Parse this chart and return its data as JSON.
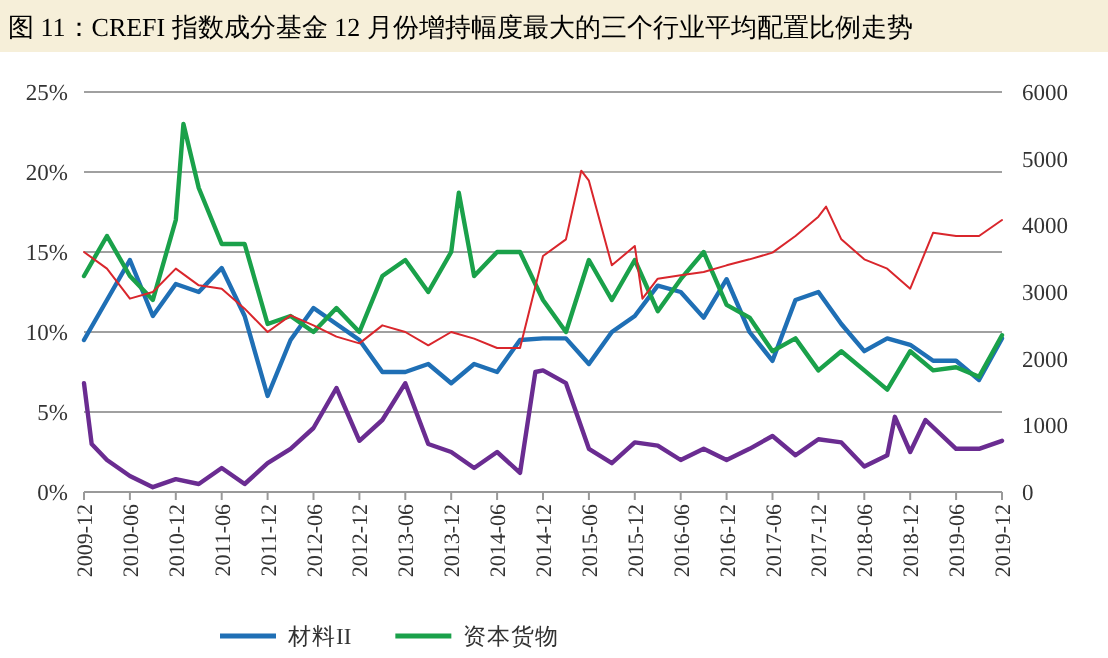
{
  "chart_data": {
    "type": "line",
    "title": "图 11：CREFI 指数成分基金 12 月份增持幅度最大的三个行业平均配置比例走势",
    "x": [
      "2009-12",
      "2010-03",
      "2010-06",
      "2010-09",
      "2010-12",
      "2011-03",
      "2011-06",
      "2011-09",
      "2011-12",
      "2012-03",
      "2012-06",
      "2012-09",
      "2012-12",
      "2013-03",
      "2013-06",
      "2013-09",
      "2013-12",
      "2014-03",
      "2014-06",
      "2014-09",
      "2014-12",
      "2015-03",
      "2015-06",
      "2015-09",
      "2015-12",
      "2016-03",
      "2016-06",
      "2016-09",
      "2016-12",
      "2017-03",
      "2017-06",
      "2017-09",
      "2017-12",
      "2018-03",
      "2018-06",
      "2018-09",
      "2018-12",
      "2019-03",
      "2019-06",
      "2019-09",
      "2019-12"
    ],
    "series": [
      {
        "name": "材料II",
        "color": "#1f6fb5",
        "values": [
          9.5,
          12,
          14.5,
          11,
          13,
          12.5,
          14,
          11,
          6,
          9.5,
          11.5,
          10.5,
          9.5,
          7.5,
          7.5,
          8,
          6.8,
          8,
          7.5,
          9.5,
          9.6,
          9.6,
          8,
          10,
          11,
          12.9,
          12.5,
          10.9,
          13.3,
          10,
          8.2,
          12,
          12.5,
          10.5,
          8.8,
          9.6,
          9.2,
          8.2,
          8.2,
          7,
          9.6
        ]
      },
      {
        "name": "资本货物",
        "color": "#1aa14a",
        "x": [
          "2009-12",
          "2010-03",
          "2010-06",
          "2010-09",
          "2010-12",
          "2011-01",
          "2011-03",
          "2011-06",
          "2011-09",
          "2011-12",
          "2012-03",
          "2012-06",
          "2012-09",
          "2012-12",
          "2013-03",
          "2013-06",
          "2013-09",
          "2013-12",
          "2014-01",
          "2014-03",
          "2014-06",
          "2014-09",
          "2014-12",
          "2015-03",
          "2015-06",
          "2015-09",
          "2015-12",
          "2016-03",
          "2016-06",
          "2016-09",
          "2016-12",
          "2017-03",
          "2017-06",
          "2017-09",
          "2017-12",
          "2018-03",
          "2018-06",
          "2018-09",
          "2018-12",
          "2019-03",
          "2019-06",
          "2019-09",
          "2019-12"
        ],
        "values": [
          13.5,
          16,
          13.5,
          12,
          17,
          23,
          19,
          15.5,
          15.5,
          10.5,
          11,
          10,
          11.5,
          10,
          13.5,
          14.5,
          12.5,
          15,
          18.7,
          13.5,
          15,
          15,
          12,
          10,
          14.5,
          12,
          14.5,
          11.3,
          13.3,
          15,
          11.7,
          10.9,
          8.8,
          9.6,
          7.6,
          8.8,
          7.6,
          6.4,
          8.8,
          7.6,
          7.8,
          7.2,
          9.8
        ]
      },
      {
        "color": "#6a2c91",
        "x": [
          "2009-12",
          "2010-01",
          "2010-03",
          "2010-06",
          "2010-09",
          "2010-12",
          "2011-03",
          "2011-06",
          "2011-09",
          "2011-12",
          "2012-03",
          "2012-06",
          "2012-09",
          "2012-12",
          "2013-03",
          "2013-06",
          "2013-09",
          "2013-12",
          "2014-03",
          "2014-06",
          "2014-09",
          "2014-11",
          "2014-12",
          "2015-03",
          "2015-06",
          "2015-09",
          "2015-12",
          "2016-03",
          "2016-06",
          "2016-09",
          "2016-12",
          "2017-03",
          "2017-06",
          "2017-09",
          "2017-12",
          "2018-03",
          "2018-06",
          "2018-09",
          "2018-10",
          "2018-12",
          "2019-02",
          "2019-06",
          "2019-09",
          "2019-12"
        ],
        "values": [
          6.8,
          3,
          2,
          1,
          0.3,
          0.8,
          0.5,
          1.5,
          0.5,
          1.8,
          2.7,
          4,
          6.5,
          3.2,
          4.5,
          6.8,
          3,
          2.5,
          1.5,
          2.5,
          1.2,
          7.5,
          7.6,
          6.8,
          2.7,
          1.8,
          3.1,
          2.9,
          2,
          2.7,
          2,
          2.7,
          3.5,
          2.3,
          3.3,
          3.1,
          1.6,
          2.3,
          4.7,
          2.5,
          4.5,
          2.7,
          2.7,
          3.2
        ]
      },
      {
        "color": "#d9262c",
        "axis": "y2",
        "x": [
          "2009-12",
          "2010-03",
          "2010-06",
          "2010-09",
          "2010-12",
          "2011-03",
          "2011-06",
          "2011-09",
          "2011-12",
          "2012-03",
          "2012-06",
          "2012-09",
          "2012-12",
          "2013-03",
          "2013-06",
          "2013-09",
          "2013-12",
          "2014-03",
          "2014-06",
          "2014-09",
          "2014-12",
          "2015-03",
          "2015-05",
          "2015-06",
          "2015-09",
          "2015-12",
          "2016-01",
          "2016-03",
          "2016-06",
          "2016-09",
          "2016-12",
          "2017-03",
          "2017-06",
          "2017-09",
          "2017-12",
          "2018-01",
          "2018-03",
          "2018-06",
          "2018-09",
          "2018-12",
          "2019-03",
          "2019-06",
          "2019-09",
          "2019-12"
        ],
        "values": [
          3600,
          3350,
          2900,
          3000,
          3350,
          3100,
          3050,
          2750,
          2400,
          2650,
          2500,
          2330,
          2230,
          2500,
          2400,
          2200,
          2400,
          2300,
          2160,
          2160,
          3540,
          3790,
          4820,
          4670,
          3400,
          3690,
          2900,
          3200,
          3250,
          3300,
          3400,
          3490,
          3590,
          3840,
          4130,
          4280,
          3790,
          3490,
          3350,
          3050,
          3890,
          3840,
          3840,
          4080
        ]
      }
    ],
    "xlim": [
      "2009-12",
      "2019-12"
    ],
    "xticks": [
      "2009-12",
      "2010-06",
      "2010-12",
      "2011-06",
      "2011-12",
      "2012-06",
      "2012-12",
      "2013-06",
      "2013-12",
      "2014-06",
      "2014-12",
      "2015-06",
      "2015-12",
      "2016-06",
      "2016-12",
      "2017-06",
      "2017-12",
      "2018-06",
      "2018-12",
      "2019-06",
      "2019-12"
    ],
    "ylim": [
      0,
      25
    ],
    "yticks": [
      {
        "value": 0,
        "label": "0%"
      },
      {
        "value": 5,
        "label": "5%"
      },
      {
        "value": 10,
        "label": "10%"
      },
      {
        "value": 15,
        "label": "15%"
      },
      {
        "value": 20,
        "label": "20%"
      },
      {
        "value": 25,
        "label": "25%"
      }
    ],
    "y2lim": [
      0,
      6000
    ],
    "y2ticks": [
      0,
      1000,
      2000,
      3000,
      4000,
      5000,
      6000
    ],
    "grid": "y",
    "legend": "bottom",
    "marker": "none",
    "line_style": "solid"
  }
}
